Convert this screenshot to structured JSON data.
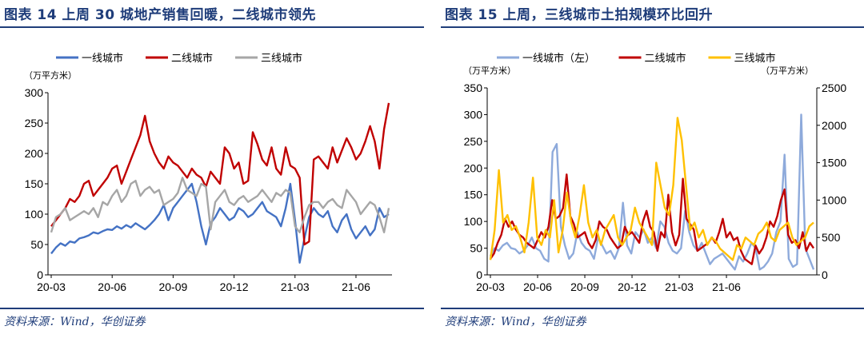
{
  "left": {
    "title": "图表 14   上周 30 城地产销售回暖，二线城市领先",
    "source": "资料来源：Wind，华创证券",
    "chart_data": {
      "type": "line",
      "yunit": "（万平方米）",
      "ylim": [
        0,
        300
      ],
      "yticks": [
        "0",
        "50",
        "100",
        "150",
        "200",
        "250",
        "300"
      ],
      "xticks": [
        "20-03",
        "20-06",
        "20-09",
        "20-12",
        "21-03",
        "21-06"
      ],
      "x_tick_positions": [
        0,
        13,
        26,
        39,
        52,
        65
      ],
      "legend": "top",
      "series": [
        {
          "name": "一线城市",
          "color": "#4472c4",
          "values": [
            35,
            45,
            52,
            48,
            55,
            53,
            60,
            62,
            65,
            70,
            68,
            72,
            75,
            74,
            80,
            76,
            82,
            78,
            85,
            80,
            75,
            82,
            90,
            100,
            115,
            90,
            110,
            120,
            130,
            140,
            150,
            120,
            80,
            50,
            85,
            95,
            110,
            100,
            90,
            95,
            110,
            105,
            95,
            100,
            110,
            120,
            105,
            100,
            95,
            80,
            110,
            150,
            90,
            20,
            60,
            95,
            110,
            100,
            95,
            105,
            80,
            70,
            90,
            100,
            75,
            60,
            70,
            80,
            65,
            75,
            110,
            95,
            100
          ]
        },
        {
          "name": "二线城市",
          "color": "#c00000",
          "values": [
            80,
            90,
            100,
            110,
            125,
            120,
            130,
            150,
            155,
            130,
            140,
            150,
            160,
            175,
            180,
            150,
            170,
            190,
            210,
            230,
            262,
            220,
            200,
            185,
            175,
            195,
            185,
            180,
            170,
            160,
            175,
            165,
            160,
            145,
            170,
            160,
            150,
            210,
            200,
            175,
            185,
            150,
            155,
            235,
            215,
            190,
            180,
            210,
            175,
            165,
            210,
            180,
            175,
            160,
            50,
            55,
            190,
            195,
            185,
            175,
            210,
            185,
            205,
            225,
            210,
            190,
            200,
            220,
            245,
            220,
            175,
            240,
            283
          ]
        },
        {
          "name": "三线城市",
          "color": "#a6a6a6",
          "values": [
            70,
            95,
            100,
            110,
            90,
            95,
            100,
            105,
            100,
            110,
            95,
            120,
            115,
            130,
            140,
            120,
            130,
            150,
            155,
            130,
            140,
            145,
            135,
            140,
            115,
            120,
            125,
            135,
            160,
            140,
            135,
            130,
            150,
            145,
            75,
            120,
            130,
            140,
            120,
            115,
            125,
            130,
            120,
            125,
            130,
            140,
            130,
            120,
            135,
            130,
            140,
            135,
            80,
            70,
            95,
            115,
            120,
            120,
            110,
            120,
            125,
            115,
            110,
            140,
            130,
            120,
            100,
            110,
            120,
            115,
            95,
            70,
            110
          ]
        }
      ]
    }
  },
  "right": {
    "title": "图表 15   上周，三线城市土拍规模环比回升",
    "source": "资料来源：Wind，华创证券",
    "chart_data": {
      "type": "line",
      "yunit_left": "（万平方米）",
      "yunit_right": "（万平方米）",
      "ylim_left": [
        0,
        350
      ],
      "ylim_right": [
        0,
        2500
      ],
      "yticks_left": [
        "0",
        "50",
        "100",
        "150",
        "200",
        "250",
        "300",
        "350"
      ],
      "yticks_right": [
        "0",
        "500",
        "1000",
        "1500",
        "2000",
        "2500"
      ],
      "xticks": [
        "20-03",
        "20-06",
        "20-09",
        "20-12",
        "21-03",
        "21-06"
      ],
      "x_tick_positions": [
        0,
        13,
        26,
        39,
        52,
        65
      ],
      "legend": "top",
      "series": [
        {
          "name": "一线城市（左）",
          "axis": "left",
          "color": "#8eaadb",
          "values": [
            35,
            50,
            45,
            55,
            60,
            50,
            48,
            40,
            45,
            55,
            70,
            50,
            45,
            30,
            25,
            230,
            245,
            90,
            55,
            30,
            40,
            80,
            60,
            50,
            45,
            30,
            70,
            55,
            40,
            45,
            30,
            50,
            135,
            55,
            40,
            80,
            70,
            85,
            60,
            70,
            50,
            100,
            90,
            60,
            45,
            40,
            50,
            120,
            80,
            55,
            45,
            60,
            40,
            20,
            30,
            35,
            40,
            30,
            20,
            10,
            35,
            25,
            40,
            60,
            50,
            10,
            15,
            25,
            40,
            80,
            100,
            225,
            30,
            15,
            20,
            300,
            50,
            30,
            10
          ]
        },
        {
          "name": "二线城市",
          "axis": "left",
          "color": "#c00000",
          "values": [
            30,
            40,
            60,
            75,
            105,
            90,
            100,
            85,
            75,
            70,
            60,
            55,
            50,
            65,
            80,
            70,
            90,
            140,
            105,
            110,
            125,
            188,
            110,
            95,
            70,
            75,
            80,
            60,
            50,
            65,
            100,
            90,
            85,
            70,
            60,
            50,
            55,
            90,
            75,
            80,
            70,
            60,
            100,
            120,
            90,
            80,
            45,
            80,
            70,
            150,
            80,
            55,
            75,
            180,
            105,
            95,
            85,
            45,
            50,
            55,
            60,
            70,
            60,
            80,
            105,
            70,
            80,
            65,
            70,
            45,
            30,
            25,
            20,
            55,
            40,
            50,
            70,
            100,
            90,
            110,
            140,
            160,
            75,
            60,
            65,
            50,
            80,
            45,
            60,
            50
          ]
        },
        {
          "name": "三线城市",
          "axis": "right",
          "color": "#ffc000",
          "values": [
            200,
            600,
            1400,
            700,
            800,
            600,
            650,
            500,
            300,
            700,
            1300,
            500,
            400,
            600,
            500,
            1000,
            300,
            600,
            1100,
            700,
            500,
            800,
            1200,
            700,
            500,
            600,
            400,
            600,
            700,
            800,
            500,
            400,
            500,
            600,
            900,
            700,
            600,
            500,
            400,
            1500,
            1200,
            900,
            800,
            1200,
            2100,
            1800,
            1200,
            600,
            700,
            500,
            600,
            400,
            500,
            450,
            350,
            300,
            250,
            200,
            400,
            350,
            500,
            450,
            400,
            550,
            600,
            700,
            500,
            450,
            600,
            650,
            700,
            500,
            400,
            450,
            500,
            650,
            700
          ]
        }
      ]
    }
  }
}
